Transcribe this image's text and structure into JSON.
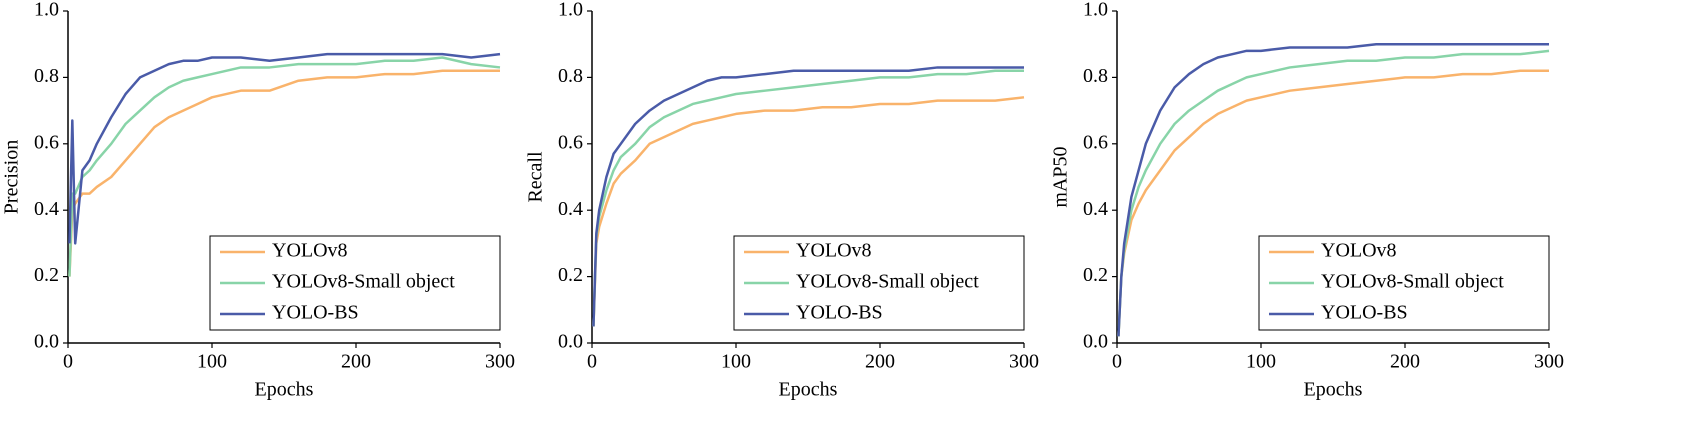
{
  "chart_data": [
    {
      "type": "line",
      "y_label": "Precision",
      "x_label": "Epochs",
      "x": [
        1,
        3,
        5,
        10,
        15,
        20,
        30,
        40,
        50,
        60,
        70,
        80,
        90,
        100,
        120,
        140,
        160,
        180,
        200,
        220,
        240,
        260,
        280,
        300
      ],
      "xlim": [
        0,
        300
      ],
      "xticks": [
        0,
        100,
        200,
        300
      ],
      "ylim": [
        0,
        1
      ],
      "yticks": [
        {
          "value": 0,
          "label": "0.0"
        },
        0.2,
        0.4,
        0.6,
        0.8,
        {
          "value": 1,
          "label": "1.0"
        }
      ],
      "legend": "lower right",
      "series": [
        {
          "name": "YOLOv8",
          "color": "#f9b36b",
          "values": [
            0.2,
            0.4,
            0.42,
            0.45,
            0.45,
            0.47,
            0.5,
            0.55,
            0.6,
            0.65,
            0.68,
            0.7,
            0.72,
            0.74,
            0.76,
            0.76,
            0.79,
            0.8,
            0.8,
            0.81,
            0.81,
            0.82,
            0.82,
            0.82
          ]
        },
        {
          "name": "YOLOv8-Small object",
          "color": "#88d4a8",
          "values": [
            0.2,
            0.45,
            0.45,
            0.5,
            0.52,
            0.55,
            0.6,
            0.66,
            0.7,
            0.74,
            0.77,
            0.79,
            0.8,
            0.81,
            0.83,
            0.83,
            0.84,
            0.84,
            0.84,
            0.85,
            0.85,
            0.86,
            0.84,
            0.83
          ]
        },
        {
          "name": "YOLO-BS",
          "color": "#4a5ba8",
          "values": [
            0.3,
            0.67,
            0.3,
            0.52,
            0.55,
            0.6,
            0.68,
            0.75,
            0.8,
            0.82,
            0.84,
            0.85,
            0.85,
            0.86,
            0.86,
            0.85,
            0.86,
            0.87,
            0.87,
            0.87,
            0.87,
            0.87,
            0.86,
            0.87
          ]
        }
      ]
    },
    {
      "type": "line",
      "y_label": "Recall",
      "x_label": "Epochs",
      "x": [
        1,
        3,
        5,
        10,
        15,
        20,
        30,
        40,
        50,
        60,
        70,
        80,
        90,
        100,
        120,
        140,
        160,
        180,
        200,
        220,
        240,
        260,
        280,
        300
      ],
      "xlim": [
        0,
        300
      ],
      "xticks": [
        0,
        100,
        200,
        300
      ],
      "ylim": [
        0,
        1
      ],
      "yticks": [
        {
          "value": 0,
          "label": "0.0"
        },
        0.2,
        0.4,
        0.6,
        0.8,
        {
          "value": 1,
          "label": "1.0"
        }
      ],
      "legend": "lower right",
      "series": [
        {
          "name": "YOLOv8",
          "color": "#f9b36b",
          "values": [
            0.05,
            0.3,
            0.35,
            0.42,
            0.48,
            0.51,
            0.55,
            0.6,
            0.62,
            0.64,
            0.66,
            0.67,
            0.68,
            0.69,
            0.7,
            0.7,
            0.71,
            0.71,
            0.72,
            0.72,
            0.73,
            0.73,
            0.73,
            0.74
          ]
        },
        {
          "name": "YOLOv8-Small object",
          "color": "#88d4a8",
          "values": [
            0.05,
            0.32,
            0.38,
            0.46,
            0.52,
            0.56,
            0.6,
            0.65,
            0.68,
            0.7,
            0.72,
            0.73,
            0.74,
            0.75,
            0.76,
            0.77,
            0.78,
            0.79,
            0.8,
            0.8,
            0.81,
            0.81,
            0.82,
            0.82
          ]
        },
        {
          "name": "YOLO-BS",
          "color": "#4a5ba8",
          "values": [
            0.05,
            0.33,
            0.4,
            0.5,
            0.57,
            0.6,
            0.66,
            0.7,
            0.73,
            0.75,
            0.77,
            0.79,
            0.8,
            0.8,
            0.81,
            0.82,
            0.82,
            0.82,
            0.82,
            0.82,
            0.83,
            0.83,
            0.83,
            0.83
          ]
        }
      ]
    },
    {
      "type": "line",
      "y_label": "mAP50",
      "x_label": "Epochs",
      "x": [
        1,
        3,
        5,
        10,
        15,
        20,
        30,
        40,
        50,
        60,
        70,
        80,
        90,
        100,
        120,
        140,
        160,
        180,
        200,
        220,
        240,
        260,
        280,
        300
      ],
      "xlim": [
        0,
        300
      ],
      "xticks": [
        0,
        100,
        200,
        300
      ],
      "ylim": [
        0,
        1
      ],
      "yticks": [
        {
          "value": 0,
          "label": "0.0"
        },
        0.2,
        0.4,
        0.6,
        0.8,
        {
          "value": 1,
          "label": "1.0"
        }
      ],
      "legend": "lower right",
      "series": [
        {
          "name": "YOLOv8",
          "color": "#f9b36b",
          "values": [
            0.02,
            0.2,
            0.27,
            0.37,
            0.42,
            0.46,
            0.52,
            0.58,
            0.62,
            0.66,
            0.69,
            0.71,
            0.73,
            0.74,
            0.76,
            0.77,
            0.78,
            0.79,
            0.8,
            0.8,
            0.81,
            0.81,
            0.82,
            0.82
          ]
        },
        {
          "name": "YOLOv8-Small object",
          "color": "#88d4a8",
          "values": [
            0.02,
            0.2,
            0.28,
            0.4,
            0.47,
            0.52,
            0.6,
            0.66,
            0.7,
            0.73,
            0.76,
            0.78,
            0.8,
            0.81,
            0.83,
            0.84,
            0.85,
            0.85,
            0.86,
            0.86,
            0.87,
            0.87,
            0.87,
            0.88
          ]
        },
        {
          "name": "YOLO-BS",
          "color": "#4a5ba8",
          "values": [
            0.02,
            0.2,
            0.3,
            0.44,
            0.52,
            0.6,
            0.7,
            0.77,
            0.81,
            0.84,
            0.86,
            0.87,
            0.88,
            0.88,
            0.89,
            0.89,
            0.89,
            0.9,
            0.9,
            0.9,
            0.9,
            0.9,
            0.9,
            0.9
          ]
        }
      ]
    }
  ]
}
